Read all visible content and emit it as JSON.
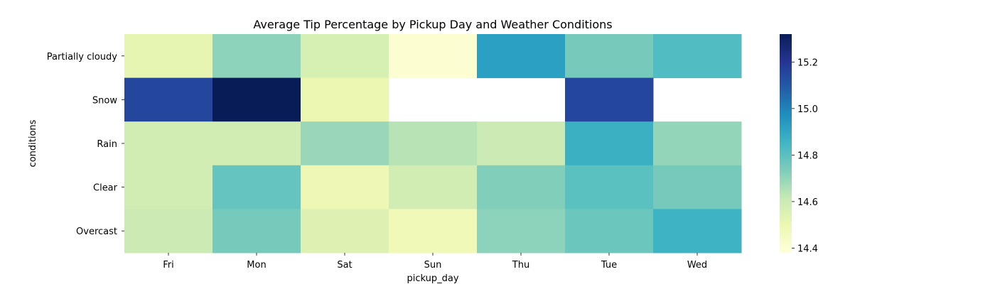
{
  "chart_data": {
    "type": "heatmap",
    "title": "Average Tip Percentage by Pickup Day and Weather Conditions",
    "xlabel": "pickup_day",
    "ylabel": "conditions",
    "x_categories": [
      "Fri",
      "Mon",
      "Sat",
      "Sun",
      "Thu",
      "Tue",
      "Wed"
    ],
    "y_categories": [
      "Partially cloudy",
      "Snow",
      "Rain",
      "Clear",
      "Overcast"
    ],
    "values": [
      [
        14.52,
        14.71,
        14.57,
        14.4,
        14.92,
        14.75,
        14.82
      ],
      [
        15.15,
        15.32,
        14.5,
        null,
        null,
        15.15,
        null
      ],
      [
        14.58,
        14.58,
        14.69,
        14.64,
        14.6,
        14.87,
        14.7
      ],
      [
        14.58,
        14.78,
        14.49,
        14.58,
        14.73,
        14.8,
        14.75
      ],
      [
        14.6,
        14.75,
        14.55,
        14.48,
        14.71,
        14.77,
        14.86
      ]
    ],
    "colorbar": {
      "colormap": "YlGnBu",
      "vmin": 14.38,
      "vmax": 15.32,
      "ticks": [
        14.4,
        14.6,
        14.8,
        15.0,
        15.2
      ],
      "tick_labels": [
        "14.4",
        "14.6",
        "14.8",
        "15.0",
        "15.2"
      ]
    }
  }
}
